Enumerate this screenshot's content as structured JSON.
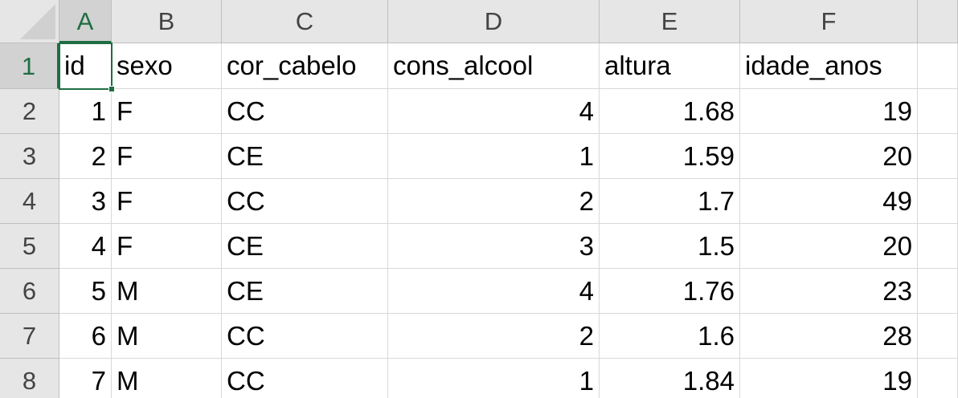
{
  "columns": [
    "A",
    "B",
    "C",
    "D",
    "E",
    "F"
  ],
  "rows": [
    {
      "num": "1",
      "cells": [
        "id",
        "sexo",
        "cor_cabelo",
        "cons_alcool",
        "altura",
        "idade_anos"
      ]
    },
    {
      "num": "2",
      "cells": [
        "1",
        "F",
        "CC",
        "4",
        "1.68",
        "19"
      ]
    },
    {
      "num": "3",
      "cells": [
        "2",
        "F",
        "CE",
        "1",
        "1.59",
        "20"
      ]
    },
    {
      "num": "4",
      "cells": [
        "3",
        "F",
        "CC",
        "2",
        "1.7",
        "49"
      ]
    },
    {
      "num": "5",
      "cells": [
        "4",
        "F",
        "CE",
        "3",
        "1.5",
        "20"
      ]
    },
    {
      "num": "6",
      "cells": [
        "5",
        "M",
        "CE",
        "4",
        "1.76",
        "23"
      ]
    },
    {
      "num": "7",
      "cells": [
        "6",
        "M",
        "CC",
        "2",
        "1.6",
        "28"
      ]
    },
    {
      "num": "8",
      "cells": [
        "7",
        "M",
        "CC",
        "1",
        "1.84",
        "19"
      ]
    }
  ],
  "active_cell": "A1",
  "colors": {
    "selection": "#1e6e42",
    "header_bg": "#e6e6e6",
    "grid": "#d9d9d9"
  }
}
